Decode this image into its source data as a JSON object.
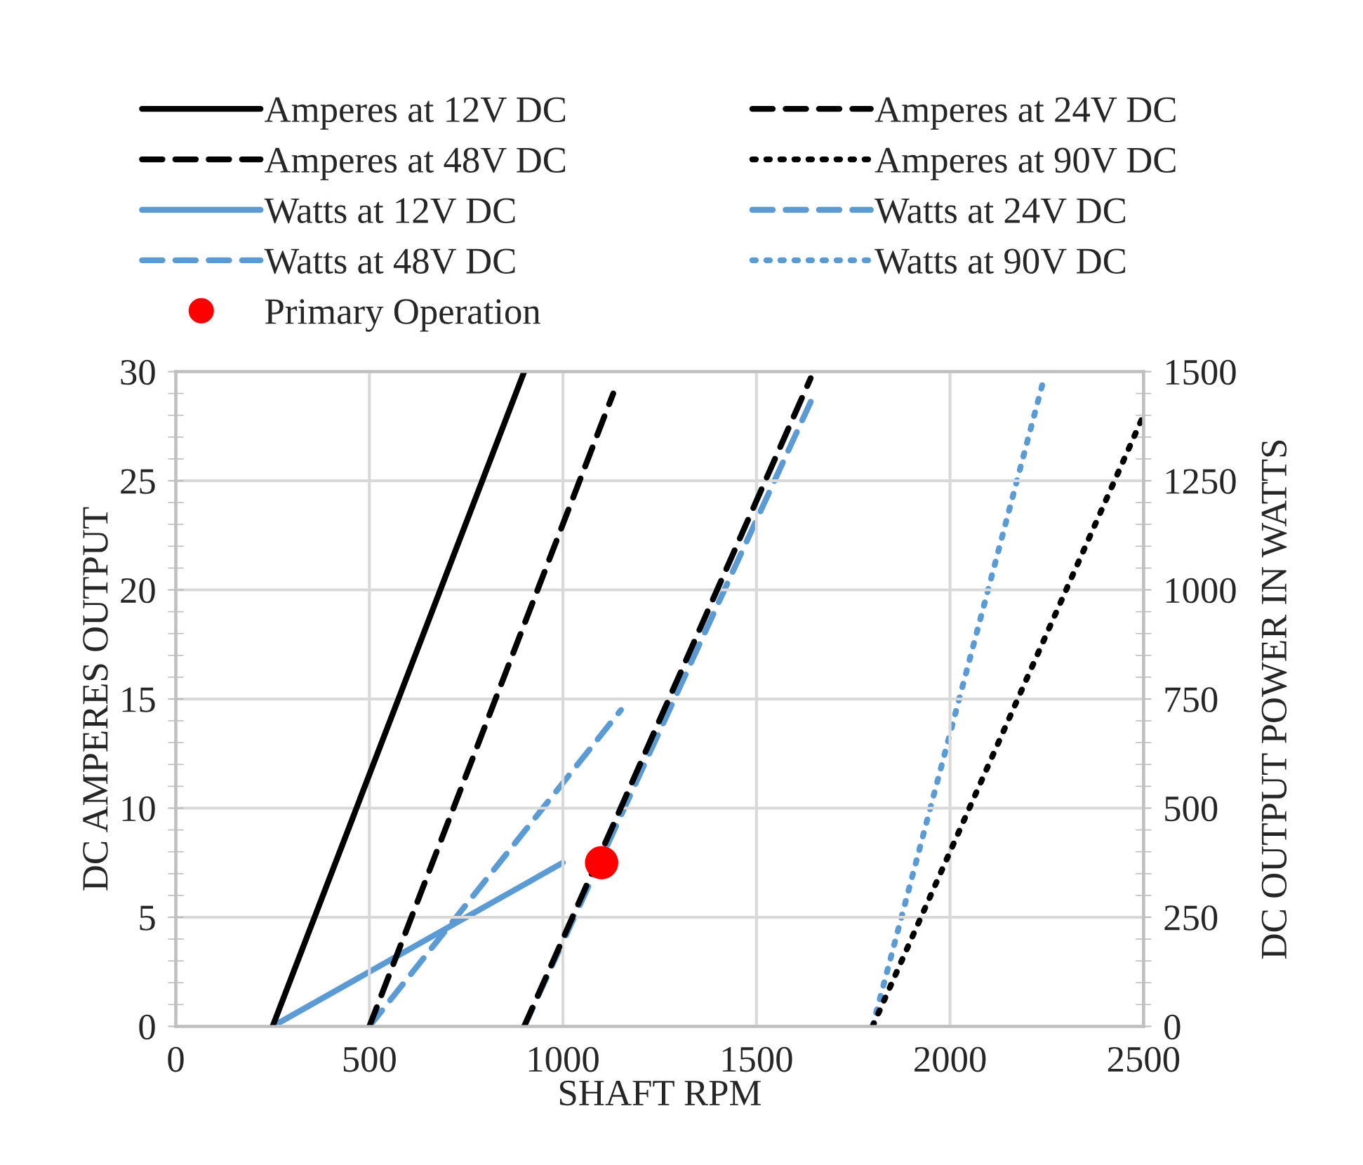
{
  "chart_data": {
    "type": "line",
    "xlabel": "SHAFT RPM",
    "ylabel": "DC AMPERES OUTPUT",
    "y2label": "DC OUTPUT POWER IN WATTS",
    "xlim": [
      0,
      2500
    ],
    "xticks": [
      0,
      500,
      1000,
      1500,
      2000,
      2500
    ],
    "ylim": [
      0,
      30
    ],
    "yticks": [
      0,
      5,
      10,
      15,
      20,
      25,
      30
    ],
    "y2lim": [
      0,
      1500
    ],
    "y2ticks": [
      0,
      250,
      500,
      750,
      1000,
      1250,
      1500
    ],
    "grid": true,
    "legend": "top",
    "series": [
      {
        "name": "Amperes at 12V DC",
        "color": "#000000",
        "line_style": "solid",
        "x": [
          250,
          900
        ],
        "values": [
          0,
          30
        ]
      },
      {
        "name": "Amperes at 24V DC",
        "color": "#000000",
        "line_style": "dashed",
        "x": [
          500,
          1130
        ],
        "values": [
          0,
          29
        ]
      },
      {
        "name": "Amperes at 48V DC",
        "color": "#000000",
        "line_style": "dashed",
        "x": [
          900,
          1640
        ],
        "values": [
          0,
          29.7
        ]
      },
      {
        "name": "Amperes at 90V DC",
        "color": "#000000",
        "line_style": "dotted",
        "x": [
          1800,
          2500
        ],
        "values": [
          0,
          28
        ]
      },
      {
        "name": "Watts at 12V DC",
        "color": "#5b9bd5",
        "line_style": "solid",
        "axis": "y2",
        "x": [
          250,
          1000
        ],
        "values": [
          0,
          375
        ]
      },
      {
        "name": "Watts at 24V DC",
        "color": "#5b9bd5",
        "line_style": "dashed",
        "axis": "y2",
        "x": [
          500,
          1150
        ],
        "values": [
          0,
          725
        ]
      },
      {
        "name": "Watts at 48V DC",
        "color": "#5b9bd5",
        "line_style": "dashed",
        "axis": "y2",
        "x": [
          900,
          1650
        ],
        "values": [
          0,
          1450
        ]
      },
      {
        "name": "Watts at 90V DC",
        "color": "#5b9bd5",
        "line_style": "dotted",
        "axis": "y2",
        "x": [
          1800,
          2240
        ],
        "values": [
          0,
          1475
        ]
      },
      {
        "name": "Primary Operation",
        "type": "scatter",
        "marker": "circle",
        "color": "#ff0000",
        "x": [
          1100
        ],
        "values": [
          7.5
        ]
      }
    ]
  }
}
